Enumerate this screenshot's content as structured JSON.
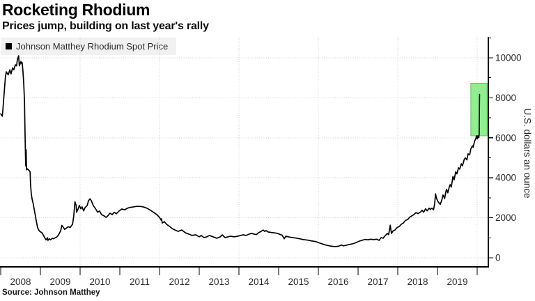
{
  "title": "Rocketing Rhodium",
  "subtitle": "Prices jump, building on last year's rally",
  "source": "Source: Johnson Matthey",
  "legend": {
    "label": "Johnson Matthey Rhodium Spot Price",
    "swatch_color": "#000000"
  },
  "y_axis": {
    "label": "U.S. dollars an ounce",
    "major_ticks": [
      0,
      2000,
      4000,
      6000,
      8000,
      10000
    ],
    "minor_ticks": [
      1000,
      3000,
      5000,
      7000,
      9000,
      11000
    ]
  },
  "x_axis": {
    "labels": [
      "2008",
      "2009",
      "2010",
      "2011",
      "2012",
      "2013",
      "2014",
      "2015",
      "2016",
      "2017",
      "2018",
      "2019"
    ],
    "tick_years": [
      2008,
      2009,
      2010,
      2011,
      2012,
      2013,
      2014,
      2015,
      2016,
      2017,
      2018,
      2019,
      2020
    ],
    "gridline_years": [
      2010,
      2012,
      2014,
      2016,
      2018,
      2020
    ]
  },
  "colors": {
    "line": "#000000",
    "grid": "#cfcfcf",
    "axis": "#000000",
    "tick_text": "#2b2b2b",
    "highlight_fill": "#90ee90",
    "highlight_stroke": "#58c958",
    "legend_bg": "#f1f1f1"
  },
  "chart_data": {
    "type": "line",
    "title": "Rocketing Rhodium",
    "xlabel": "",
    "ylabel": "U.S. dollars an ounce",
    "xlim": [
      2008,
      2020.28
    ],
    "ylim": [
      0,
      11045
    ],
    "grid": "dotted",
    "legend_position": "top-left",
    "highlight_box": {
      "x0": 2019.84,
      "x1": 2020.25,
      "y0": 6100,
      "y1": 8730
    },
    "series": [
      {
        "name": "Johnson Matthey Rhodium Spot Price",
        "color": "#000000",
        "points": [
          [
            2008.0,
            7200
          ],
          [
            2008.04,
            7080
          ],
          [
            2008.05,
            7250
          ],
          [
            2008.09,
            8300
          ],
          [
            2008.12,
            9050
          ],
          [
            2008.14,
            9300
          ],
          [
            2008.19,
            9150
          ],
          [
            2008.23,
            9400
          ],
          [
            2008.26,
            9200
          ],
          [
            2008.3,
            9500
          ],
          [
            2008.33,
            9400
          ],
          [
            2008.37,
            9650
          ],
          [
            2008.4,
            9600
          ],
          [
            2008.42,
            9900
          ],
          [
            2008.45,
            10100
          ],
          [
            2008.47,
            9600
          ],
          [
            2008.51,
            9820
          ],
          [
            2008.53,
            9700
          ],
          [
            2008.54,
            9760
          ],
          [
            2008.56,
            9350
          ],
          [
            2008.58,
            8700
          ],
          [
            2008.6,
            7800
          ],
          [
            2008.61,
            6450
          ],
          [
            2008.62,
            5600
          ],
          [
            2008.63,
            4600
          ],
          [
            2008.64,
            5400
          ],
          [
            2008.65,
            4400
          ],
          [
            2008.67,
            4450
          ],
          [
            2008.7,
            4400
          ],
          [
            2008.74,
            4300
          ],
          [
            2008.75,
            3700
          ],
          [
            2008.77,
            3200
          ],
          [
            2008.79,
            2950
          ],
          [
            2008.82,
            2700
          ],
          [
            2008.86,
            2250
          ],
          [
            2008.9,
            1800
          ],
          [
            2008.93,
            1500
          ],
          [
            2008.97,
            1350
          ],
          [
            2009.0,
            1300
          ],
          [
            2009.04,
            1250
          ],
          [
            2009.07,
            1150
          ],
          [
            2009.11,
            1000
          ],
          [
            2009.14,
            900
          ],
          [
            2009.18,
            1000
          ],
          [
            2009.19,
            870
          ],
          [
            2009.23,
            950
          ],
          [
            2009.26,
            900
          ],
          [
            2009.3,
            980
          ],
          [
            2009.33,
            950
          ],
          [
            2009.37,
            1000
          ],
          [
            2009.4,
            1020
          ],
          [
            2009.44,
            1100
          ],
          [
            2009.47,
            1200
          ],
          [
            2009.51,
            1350
          ],
          [
            2009.54,
            1620
          ],
          [
            2009.58,
            1520
          ],
          [
            2009.61,
            1420
          ],
          [
            2009.65,
            1480
          ],
          [
            2009.7,
            1550
          ],
          [
            2009.75,
            1520
          ],
          [
            2009.81,
            1680
          ],
          [
            2009.84,
            2100
          ],
          [
            2009.87,
            2800
          ],
          [
            2009.9,
            2620
          ],
          [
            2009.91,
            2280
          ],
          [
            2009.95,
            2450
          ],
          [
            2009.98,
            2620
          ],
          [
            2010.02,
            2450
          ],
          [
            2010.05,
            2550
          ],
          [
            2010.09,
            2340
          ],
          [
            2010.12,
            2500
          ],
          [
            2010.18,
            2620
          ],
          [
            2010.21,
            2860
          ],
          [
            2010.25,
            2950
          ],
          [
            2010.28,
            2860
          ],
          [
            2010.33,
            2620
          ],
          [
            2010.39,
            2450
          ],
          [
            2010.44,
            2280
          ],
          [
            2010.49,
            2340
          ],
          [
            2010.54,
            2160
          ],
          [
            2010.6,
            2100
          ],
          [
            2010.65,
            2020
          ],
          [
            2010.7,
            2100
          ],
          [
            2010.75,
            2230
          ],
          [
            2010.81,
            2160
          ],
          [
            2010.86,
            2280
          ],
          [
            2010.91,
            2200
          ],
          [
            2010.98,
            2340
          ],
          [
            2011.05,
            2440
          ],
          [
            2011.12,
            2400
          ],
          [
            2011.19,
            2480
          ],
          [
            2011.26,
            2520
          ],
          [
            2011.33,
            2540
          ],
          [
            2011.42,
            2570
          ],
          [
            2011.51,
            2570
          ],
          [
            2011.6,
            2540
          ],
          [
            2011.68,
            2480
          ],
          [
            2011.77,
            2380
          ],
          [
            2011.86,
            2260
          ],
          [
            2011.93,
            2160
          ],
          [
            2012.0,
            2020
          ],
          [
            2012.04,
            1880
          ],
          [
            2012.05,
            1950
          ],
          [
            2012.07,
            1740
          ],
          [
            2012.12,
            1810
          ],
          [
            2012.18,
            1670
          ],
          [
            2012.25,
            1570
          ],
          [
            2012.32,
            1460
          ],
          [
            2012.39,
            1390
          ],
          [
            2012.47,
            1320
          ],
          [
            2012.56,
            1390
          ],
          [
            2012.65,
            1250
          ],
          [
            2012.74,
            1180
          ],
          [
            2012.82,
            1120
          ],
          [
            2012.91,
            1150
          ],
          [
            2013.0,
            1050
          ],
          [
            2013.05,
            1120
          ],
          [
            2013.12,
            1010
          ],
          [
            2013.19,
            1050
          ],
          [
            2013.26,
            1120
          ],
          [
            2013.35,
            1050
          ],
          [
            2013.44,
            980
          ],
          [
            2013.53,
            1050
          ],
          [
            2013.58,
            1150
          ],
          [
            2013.65,
            1010
          ],
          [
            2013.72,
            1050
          ],
          [
            2013.79,
            1080
          ],
          [
            2013.88,
            1050
          ],
          [
            2013.97,
            1080
          ],
          [
            2014.04,
            1120
          ],
          [
            2014.11,
            1150
          ],
          [
            2014.18,
            1120
          ],
          [
            2014.25,
            1180
          ],
          [
            2014.32,
            1220
          ],
          [
            2014.39,
            1180
          ],
          [
            2014.44,
            1160
          ],
          [
            2014.49,
            1250
          ],
          [
            2014.56,
            1320
          ],
          [
            2014.61,
            1390
          ],
          [
            2014.65,
            1320
          ],
          [
            2014.68,
            1360
          ],
          [
            2014.74,
            1290
          ],
          [
            2014.81,
            1270
          ],
          [
            2014.88,
            1250
          ],
          [
            2014.95,
            1230
          ],
          [
            2015.02,
            1180
          ],
          [
            2015.09,
            1130
          ],
          [
            2015.14,
            950
          ],
          [
            2015.18,
            1080
          ],
          [
            2015.25,
            1050
          ],
          [
            2015.32,
            1020
          ],
          [
            2015.39,
            1000
          ],
          [
            2015.46,
            980
          ],
          [
            2015.53,
            950
          ],
          [
            2015.6,
            920
          ],
          [
            2015.67,
            900
          ],
          [
            2015.74,
            880
          ],
          [
            2015.81,
            850
          ],
          [
            2015.88,
            830
          ],
          [
            2015.95,
            800
          ],
          [
            2016.02,
            750
          ],
          [
            2016.09,
            700
          ],
          [
            2016.16,
            650
          ],
          [
            2016.23,
            620
          ],
          [
            2016.3,
            590
          ],
          [
            2016.37,
            570
          ],
          [
            2016.44,
            560
          ],
          [
            2016.51,
            580
          ],
          [
            2016.58,
            640
          ],
          [
            2016.63,
            600
          ],
          [
            2016.68,
            620
          ],
          [
            2016.75,
            650
          ],
          [
            2016.82,
            680
          ],
          [
            2016.9,
            720
          ],
          [
            2016.97,
            780
          ],
          [
            2017.04,
            840
          ],
          [
            2017.11,
            880
          ],
          [
            2017.18,
            920
          ],
          [
            2017.25,
            900
          ],
          [
            2017.32,
            930
          ],
          [
            2017.39,
            910
          ],
          [
            2017.47,
            930
          ],
          [
            2017.53,
            870
          ],
          [
            2017.58,
            1010
          ],
          [
            2017.63,
            980
          ],
          [
            2017.68,
            1100
          ],
          [
            2017.74,
            1220
          ],
          [
            2017.77,
            1160
          ],
          [
            2017.81,
            1630
          ],
          [
            2017.84,
            1220
          ],
          [
            2017.88,
            1340
          ],
          [
            2017.93,
            1390
          ],
          [
            2017.98,
            1510
          ],
          [
            2018.04,
            1570
          ],
          [
            2018.09,
            1680
          ],
          [
            2018.14,
            1740
          ],
          [
            2018.19,
            1860
          ],
          [
            2018.25,
            1920
          ],
          [
            2018.3,
            2030
          ],
          [
            2018.35,
            2090
          ],
          [
            2018.4,
            2150
          ],
          [
            2018.46,
            2260
          ],
          [
            2018.51,
            2210
          ],
          [
            2018.54,
            2250
          ],
          [
            2018.58,
            2300
          ],
          [
            2018.61,
            2380
          ],
          [
            2018.65,
            2280
          ],
          [
            2018.7,
            2450
          ],
          [
            2018.74,
            2350
          ],
          [
            2018.79,
            2480
          ],
          [
            2018.82,
            2420
          ],
          [
            2018.86,
            2480
          ],
          [
            2018.9,
            2400
          ],
          [
            2018.93,
            2700
          ],
          [
            2018.95,
            3200
          ],
          [
            2018.98,
            2950
          ],
          [
            2019.02,
            2790
          ],
          [
            2019.05,
            2720
          ],
          [
            2019.07,
            2670
          ],
          [
            2019.11,
            2900
          ],
          [
            2019.14,
            3140
          ],
          [
            2019.18,
            2960
          ],
          [
            2019.21,
            3300
          ],
          [
            2019.23,
            3430
          ],
          [
            2019.26,
            3250
          ],
          [
            2019.3,
            3560
          ],
          [
            2019.32,
            3660
          ],
          [
            2019.35,
            3540
          ],
          [
            2019.39,
            4070
          ],
          [
            2019.42,
            3900
          ],
          [
            2019.46,
            4300
          ],
          [
            2019.49,
            4200
          ],
          [
            2019.53,
            4500
          ],
          [
            2019.56,
            4430
          ],
          [
            2019.6,
            4700
          ],
          [
            2019.63,
            4600
          ],
          [
            2019.67,
            4900
          ],
          [
            2019.7,
            5000
          ],
          [
            2019.74,
            4900
          ],
          [
            2019.77,
            5200
          ],
          [
            2019.81,
            5150
          ],
          [
            2019.84,
            5450
          ],
          [
            2019.88,
            5600
          ],
          [
            2019.9,
            5530
          ],
          [
            2019.93,
            5800
          ],
          [
            2019.97,
            6000
          ],
          [
            2019.98,
            6100
          ],
          [
            2020.0,
            5950
          ],
          [
            2020.02,
            6100
          ],
          [
            2020.04,
            6000
          ],
          [
            2020.05,
            6160
          ],
          [
            2020.06,
            8170
          ]
        ]
      }
    ]
  }
}
